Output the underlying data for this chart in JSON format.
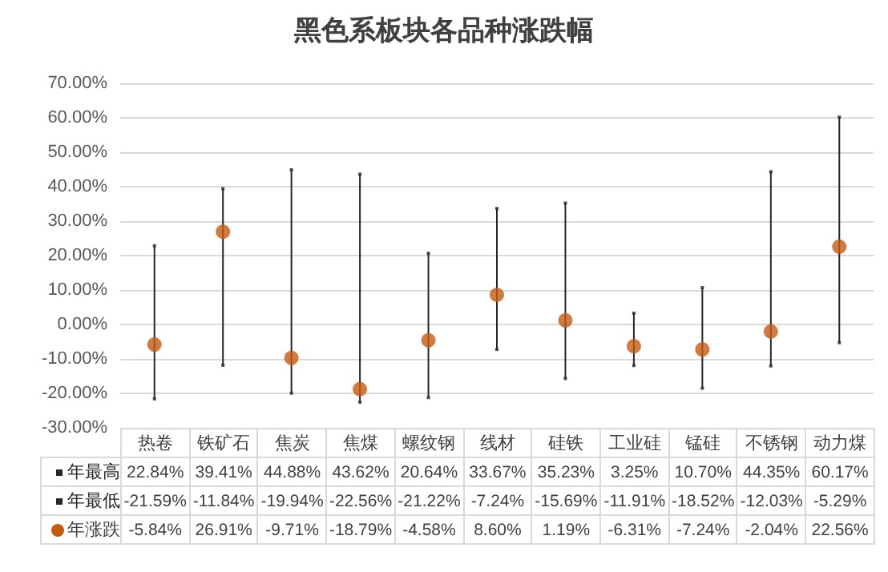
{
  "chart_data": {
    "type": "scatter",
    "title": "黑色系板块各品种涨跌幅",
    "categories": [
      "热卷",
      "铁矿石",
      "焦炭",
      "焦煤",
      "螺纹钢",
      "线材",
      "硅铁",
      "工业硅",
      "锰硅",
      "不锈钢",
      "动力煤"
    ],
    "series": [
      {
        "name": "年最高",
        "marker": "square",
        "line_style": "solid",
        "color": "#262626",
        "values": [
          22.84,
          39.41,
          44.88,
          43.62,
          20.64,
          33.67,
          35.23,
          3.25,
          10.7,
          44.35,
          60.17
        ],
        "value_labels": [
          "22.84%",
          "39.41%",
          "44.88%",
          "43.62%",
          "20.64%",
          "33.67%",
          "35.23%",
          "3.25%",
          "10.70%",
          "44.35%",
          "60.17%"
        ]
      },
      {
        "name": "年最低",
        "marker": "square",
        "line_style": "solid",
        "color": "#262626",
        "values": [
          -21.59,
          -11.84,
          -19.94,
          -22.56,
          -21.22,
          -7.24,
          -15.69,
          -11.91,
          -18.52,
          -12.03,
          -5.29
        ],
        "value_labels": [
          "-21.59%",
          "-11.84%",
          "-19.94%",
          "-22.56%",
          "-21.22%",
          "-7.24%",
          "-15.69%",
          "-11.91%",
          "-18.52%",
          "-12.03%",
          "-5.29%"
        ]
      },
      {
        "name": "年涨跌",
        "marker": "circle",
        "color": "#c55a11",
        "values": [
          -5.84,
          26.91,
          -9.71,
          -18.79,
          -4.58,
          8.6,
          1.19,
          -6.31,
          -7.24,
          -2.04,
          22.56
        ],
        "value_labels": [
          "-5.84%",
          "26.91%",
          "-9.71%",
          "-18.79%",
          "-4.58%",
          "8.60%",
          "1.19%",
          "-6.31%",
          "-7.24%",
          "-2.04%",
          "22.56%"
        ]
      }
    ],
    "ylim": [
      -30,
      70
    ],
    "yticks": [
      {
        "value": -30,
        "label": "-30.00%"
      },
      {
        "value": -20,
        "label": "-20.00%"
      },
      {
        "value": -10,
        "label": "-10.00%"
      },
      {
        "value": 0,
        "label": "0.00%"
      },
      {
        "value": 10,
        "label": "10.00%"
      },
      {
        "value": 20,
        "label": "20.00%"
      },
      {
        "value": 30,
        "label": "30.00%"
      },
      {
        "value": 40,
        "label": "40.00%"
      },
      {
        "value": 50,
        "label": "50.00%"
      },
      {
        "value": 60,
        "label": "60.00%"
      },
      {
        "value": 70,
        "label": "70.00%"
      }
    ],
    "grid": "y",
    "legend": "bottom",
    "data_labels": true
  }
}
